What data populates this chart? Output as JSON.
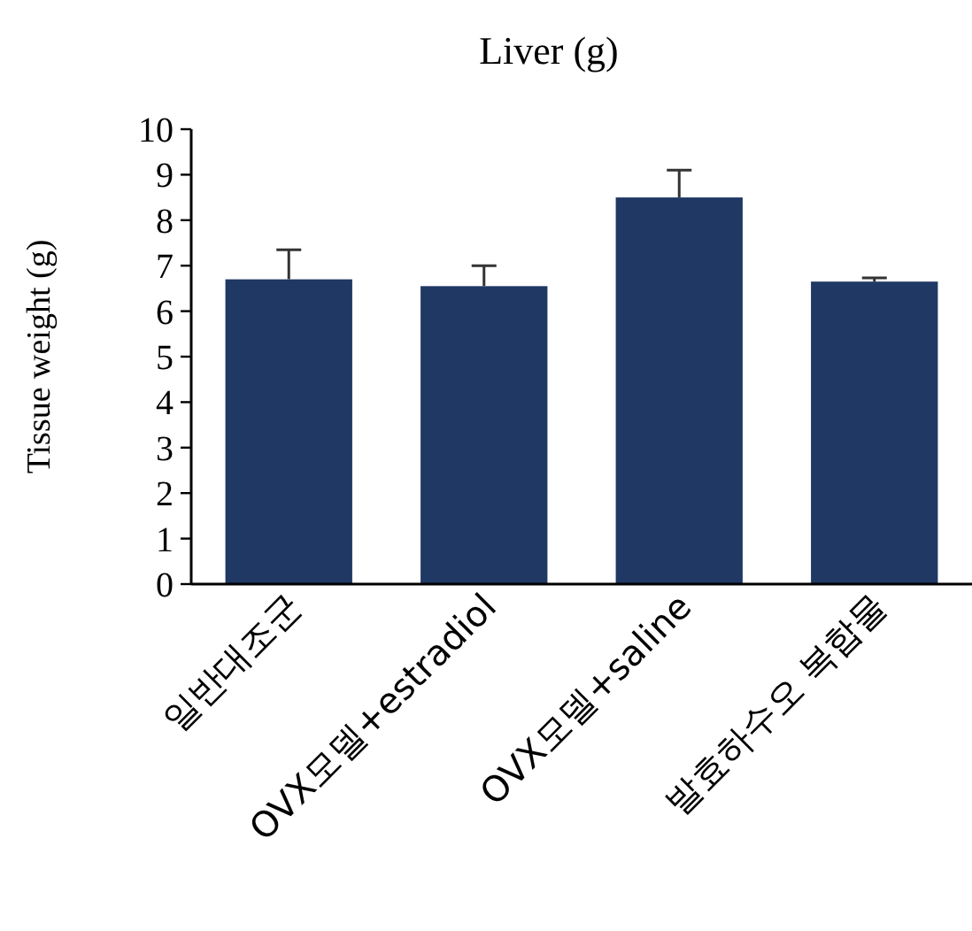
{
  "chart_data": {
    "type": "bar",
    "title": "Liver (g)",
    "ylabel": "Tissue weight (g)",
    "categories": [
      "일반대조군",
      "OVX모델+estradiol",
      "OVX모델+saline",
      "발효하수오 복합물"
    ],
    "values": [
      6.7,
      6.55,
      8.5,
      6.65
    ],
    "errors": [
      0.65,
      0.45,
      0.6,
      0.08
    ],
    "color": "#203864",
    "ylim": [
      0,
      10
    ],
    "yticks": [
      0,
      1,
      2,
      3,
      4,
      5,
      6,
      7,
      8,
      9,
      10
    ],
    "grid": false
  }
}
